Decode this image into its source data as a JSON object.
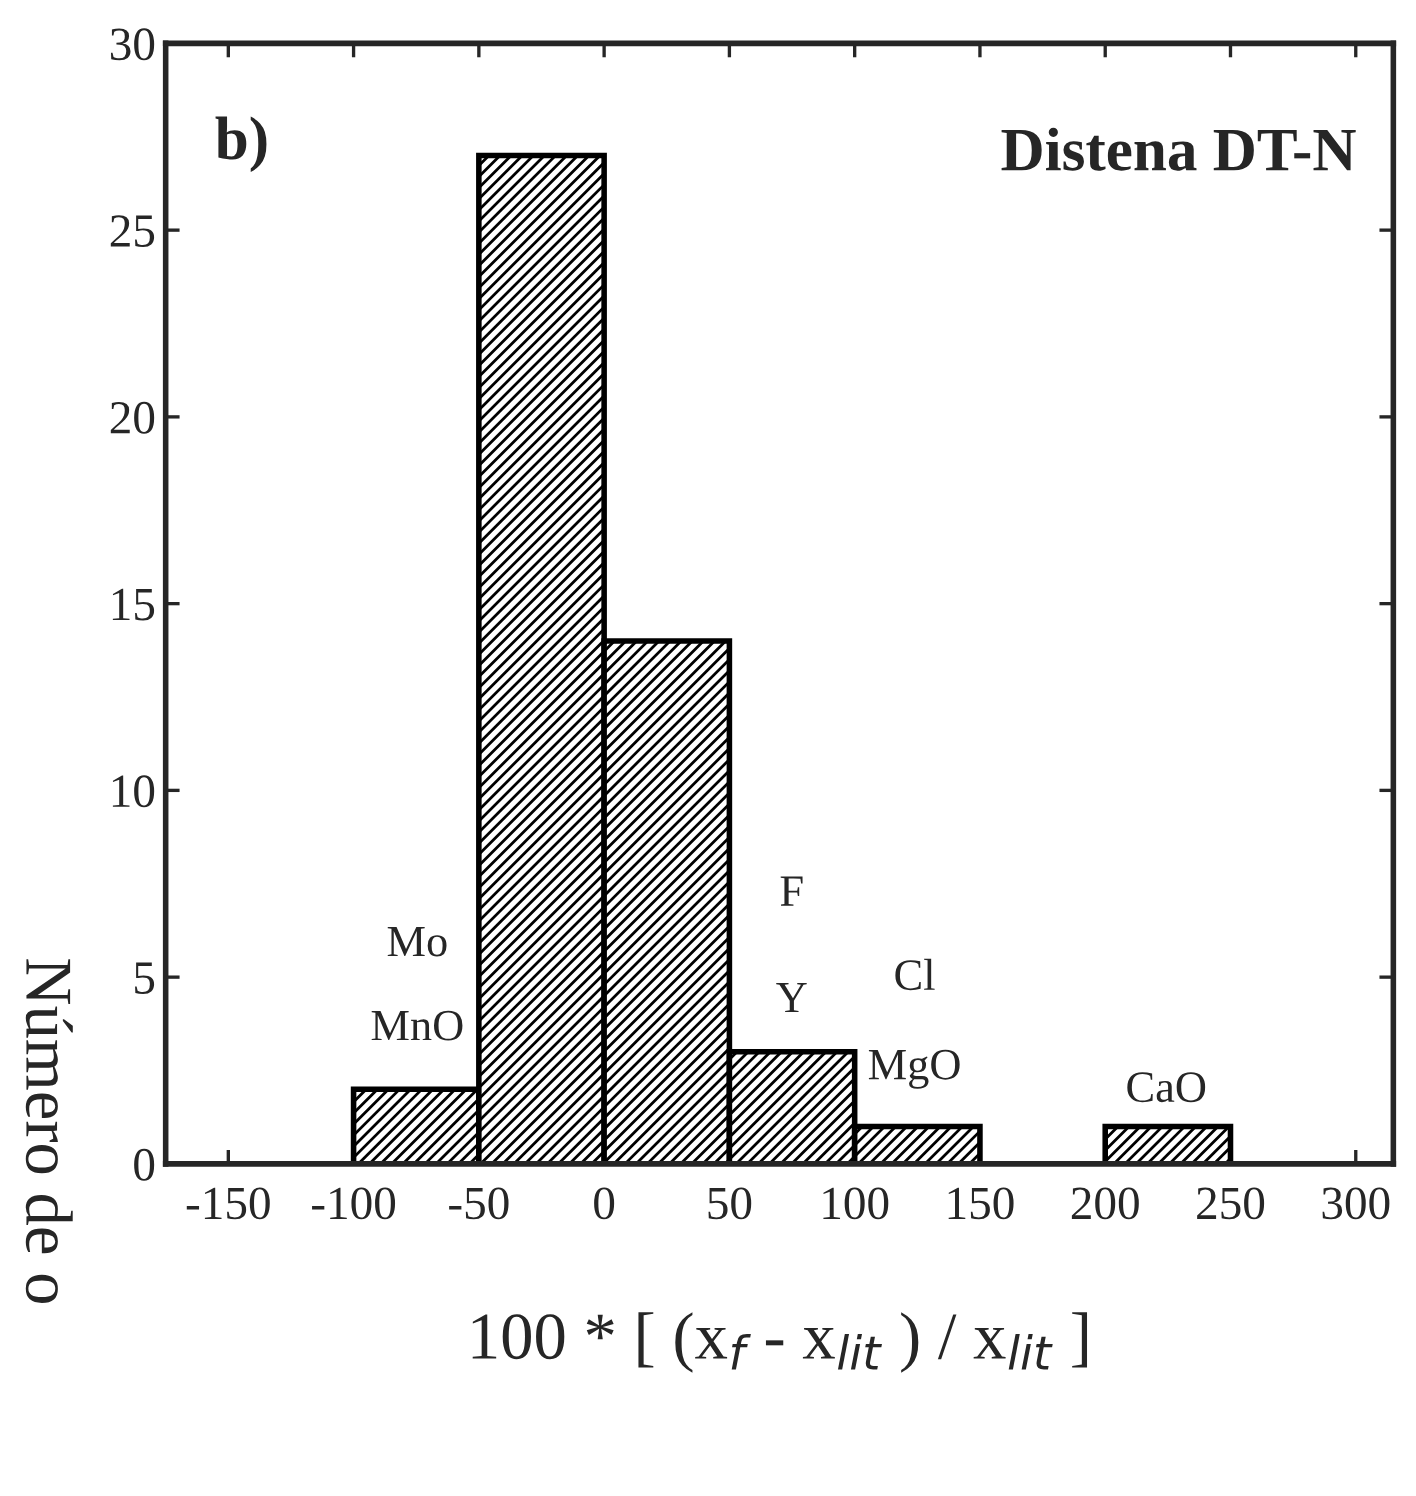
{
  "chart_data": {
    "type": "histogram",
    "title": "Distena DT-N",
    "xlabel": "100 * [ (x$_{f}$ - x$_{lit}$ ) / x$_{lit}$ ]",
    "ylabel": "Número de o",
    "bins": [
      -100,
      -50,
      0,
      50,
      100,
      150,
      200,
      250
    ],
    "values": [
      2,
      27,
      14,
      3,
      1,
      0,
      1
    ],
    "color": "#000000",
    "xlim": [
      -175,
      315
    ],
    "xticks": [
      -150,
      -100,
      -50,
      0,
      50,
      100,
      150,
      200,
      250,
      300
    ],
    "ylim": [
      0,
      30
    ],
    "yticks": [
      0,
      5,
      10,
      15,
      20,
      25,
      30
    ],
    "grid": false,
    "annotations": [
      "b)",
      "Mo",
      "MnO",
      "F",
      "Y",
      "Cl",
      "MgO",
      "CaO"
    ]
  }
}
